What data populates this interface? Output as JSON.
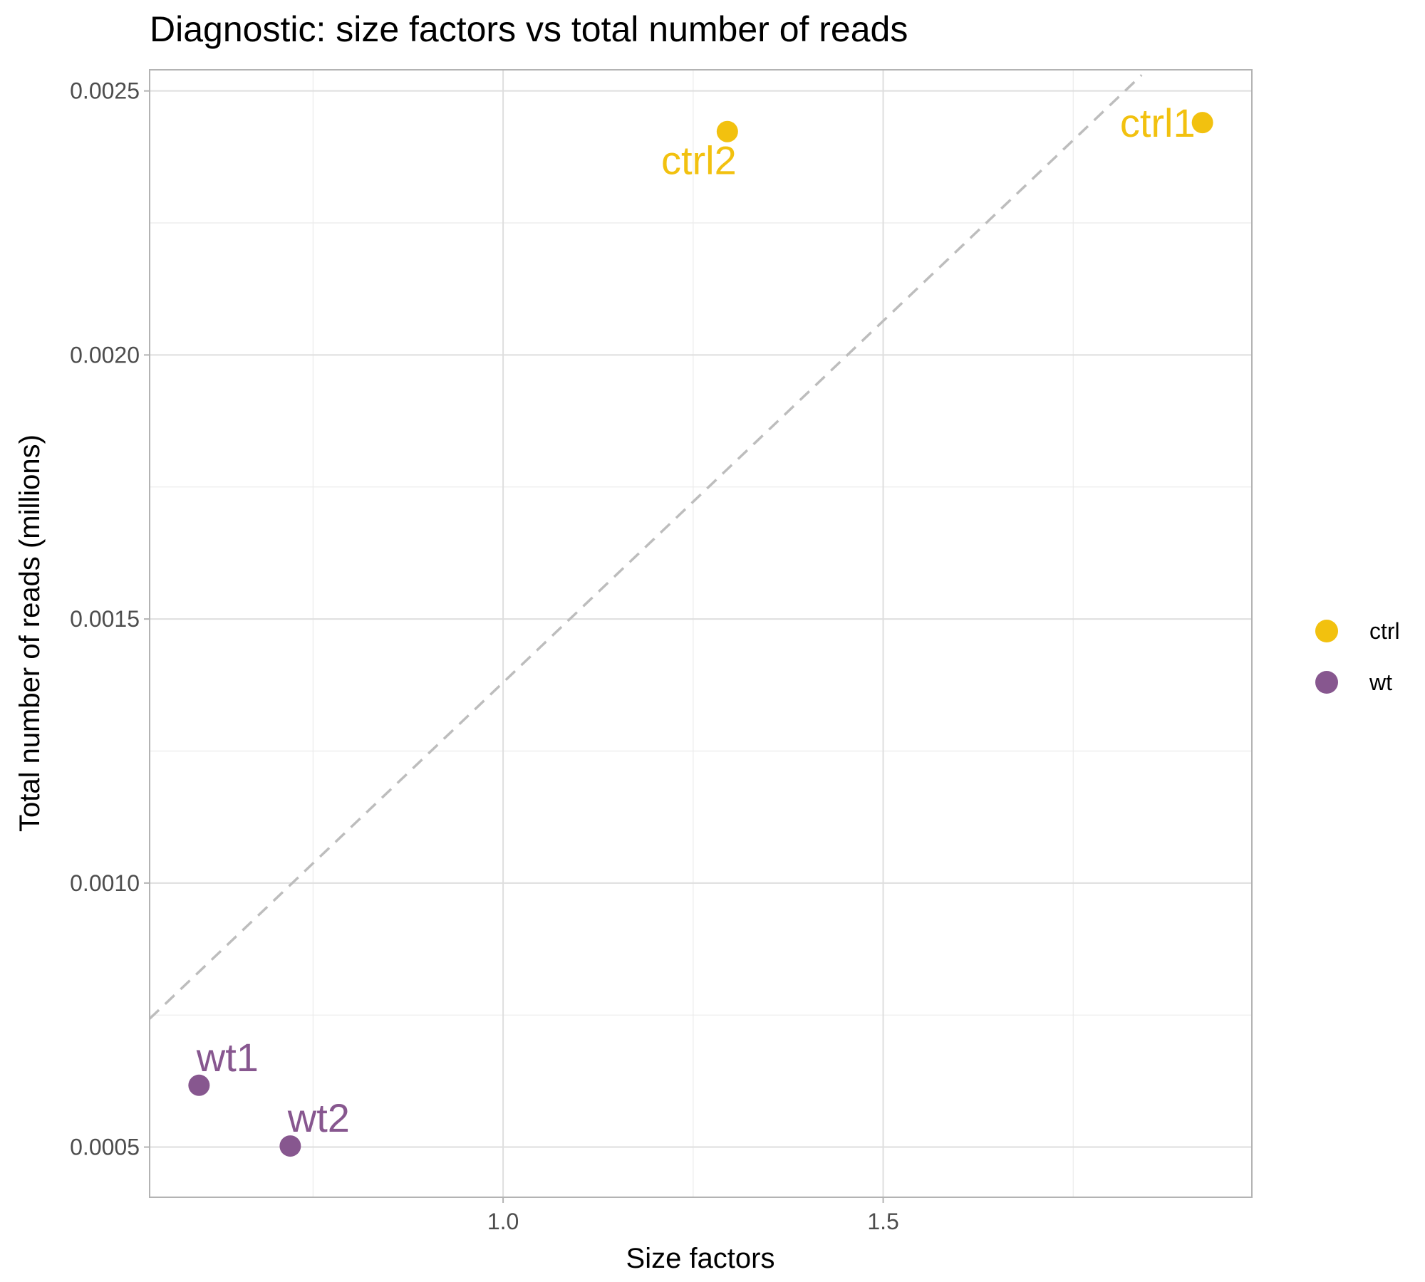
{
  "chart_data": {
    "type": "scatter",
    "title": "Diagnostic: size factors vs total number of reads",
    "xlabel": "Size factors",
    "ylabel": "Total number of reads (millions)",
    "xlim": [
      0.535,
      1.985
    ],
    "ylim": [
      0.000405,
      0.00254
    ],
    "xticks": [
      {
        "value": 1.0,
        "label": "1.0"
      },
      {
        "value": 1.5,
        "label": "1.5"
      }
    ],
    "x_minor_gridlines": [
      0.75,
      1.25,
      1.75
    ],
    "yticks": [
      {
        "value": 0.0005,
        "label": "0.0005"
      },
      {
        "value": 0.001,
        "label": "0.0010"
      },
      {
        "value": 0.0015,
        "label": "0.0015"
      },
      {
        "value": 0.002,
        "label": "0.0020"
      },
      {
        "value": 0.0025,
        "label": "0.0025"
      }
    ],
    "y_minor_gridlines": [
      0.00075,
      0.00125,
      0.00175,
      0.00225
    ],
    "grid": true,
    "reference_line": {
      "style": "dashed",
      "color": "#bdbdbd",
      "points": [
        [
          0.535,
          0.000743
        ],
        [
          1.84,
          0.00253
        ]
      ]
    },
    "series": [
      {
        "name": "ctrl",
        "color": "#F2C10F",
        "points": [
          {
            "label": "ctrl1",
            "x": 1.92,
            "y": 0.00244
          },
          {
            "label": "ctrl2",
            "x": 1.295,
            "y": 0.002423
          }
        ]
      },
      {
        "name": "wt",
        "color": "#87578F",
        "points": [
          {
            "label": "wt1",
            "x": 0.6,
            "y": 0.000617
          },
          {
            "label": "wt2",
            "x": 0.72,
            "y": 0.000502
          }
        ]
      }
    ],
    "legend": {
      "placement": "right",
      "entries": [
        {
          "label": "ctrl",
          "color": "#F2C10F"
        },
        {
          "label": "wt",
          "color": "#87578F"
        }
      ]
    }
  }
}
